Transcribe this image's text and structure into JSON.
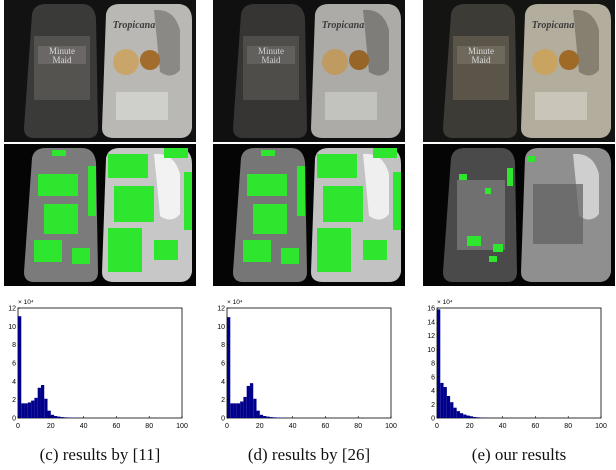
{
  "columns": [
    {
      "caption": "(c)  results by [11]"
    },
    {
      "caption": "(d)  results by [26]"
    },
    {
      "caption": "(e)  our results"
    }
  ],
  "label_left_bottle": [
    "Minute",
    "Maid"
  ],
  "label_right_bottle": "Tropicana",
  "highlight_color": "#2ee62e",
  "bar_color": "#00008b",
  "chart_data": [
    {
      "type": "bar",
      "x": [
        1,
        3,
        5,
        7,
        9,
        11,
        13,
        15,
        17,
        19,
        21,
        23,
        25,
        27,
        29,
        31,
        33,
        35,
        37,
        39
      ],
      "values": [
        11.1,
        1.6,
        1.6,
        1.7,
        1.9,
        2.2,
        3.3,
        3.6,
        2.1,
        0.8,
        0.35,
        0.22,
        0.15,
        0.1,
        0.07,
        0.05,
        0.03,
        0.02,
        0.01,
        0.005
      ],
      "xlim": [
        0,
        100
      ],
      "ylim": [
        0,
        12
      ],
      "xticks": [
        "0",
        "20",
        "40",
        "60",
        "80",
        "100"
      ],
      "yticks": [
        "0",
        "2",
        "4",
        "6",
        "8",
        "10",
        "12"
      ],
      "scale_label": "× 10⁴"
    },
    {
      "type": "bar",
      "x": [
        1,
        3,
        5,
        7,
        9,
        11,
        13,
        15,
        17,
        19,
        21,
        23,
        25,
        27,
        29,
        31,
        33,
        35,
        37,
        39
      ],
      "values": [
        11.0,
        1.6,
        1.6,
        1.6,
        1.8,
        2.3,
        3.5,
        3.8,
        2.1,
        0.8,
        0.35,
        0.22,
        0.15,
        0.1,
        0.07,
        0.05,
        0.03,
        0.02,
        0.01,
        0.005
      ],
      "xlim": [
        0,
        100
      ],
      "ylim": [
        0,
        12
      ],
      "xticks": [
        "0",
        "20",
        "40",
        "60",
        "80",
        "100"
      ],
      "yticks": [
        "0",
        "2",
        "4",
        "6",
        "8",
        "10",
        "12"
      ],
      "scale_label": "× 10⁴"
    },
    {
      "type": "bar",
      "x": [
        1,
        3,
        5,
        7,
        9,
        11,
        13,
        15,
        17,
        19,
        21,
        23,
        25,
        27,
        29,
        31
      ],
      "values": [
        15.8,
        5.1,
        4.5,
        3.2,
        2.3,
        1.5,
        1.0,
        0.7,
        0.5,
        0.35,
        0.25,
        0.15,
        0.1,
        0.06,
        0.04,
        0.02
      ],
      "xlim": [
        0,
        100
      ],
      "ylim": [
        0,
        16
      ],
      "xticks": [
        "0",
        "20",
        "40",
        "60",
        "80",
        "100"
      ],
      "yticks": [
        "0",
        "2",
        "4",
        "6",
        "8",
        "10",
        "12",
        "14",
        "16"
      ],
      "scale_label": "× 10⁴"
    }
  ]
}
